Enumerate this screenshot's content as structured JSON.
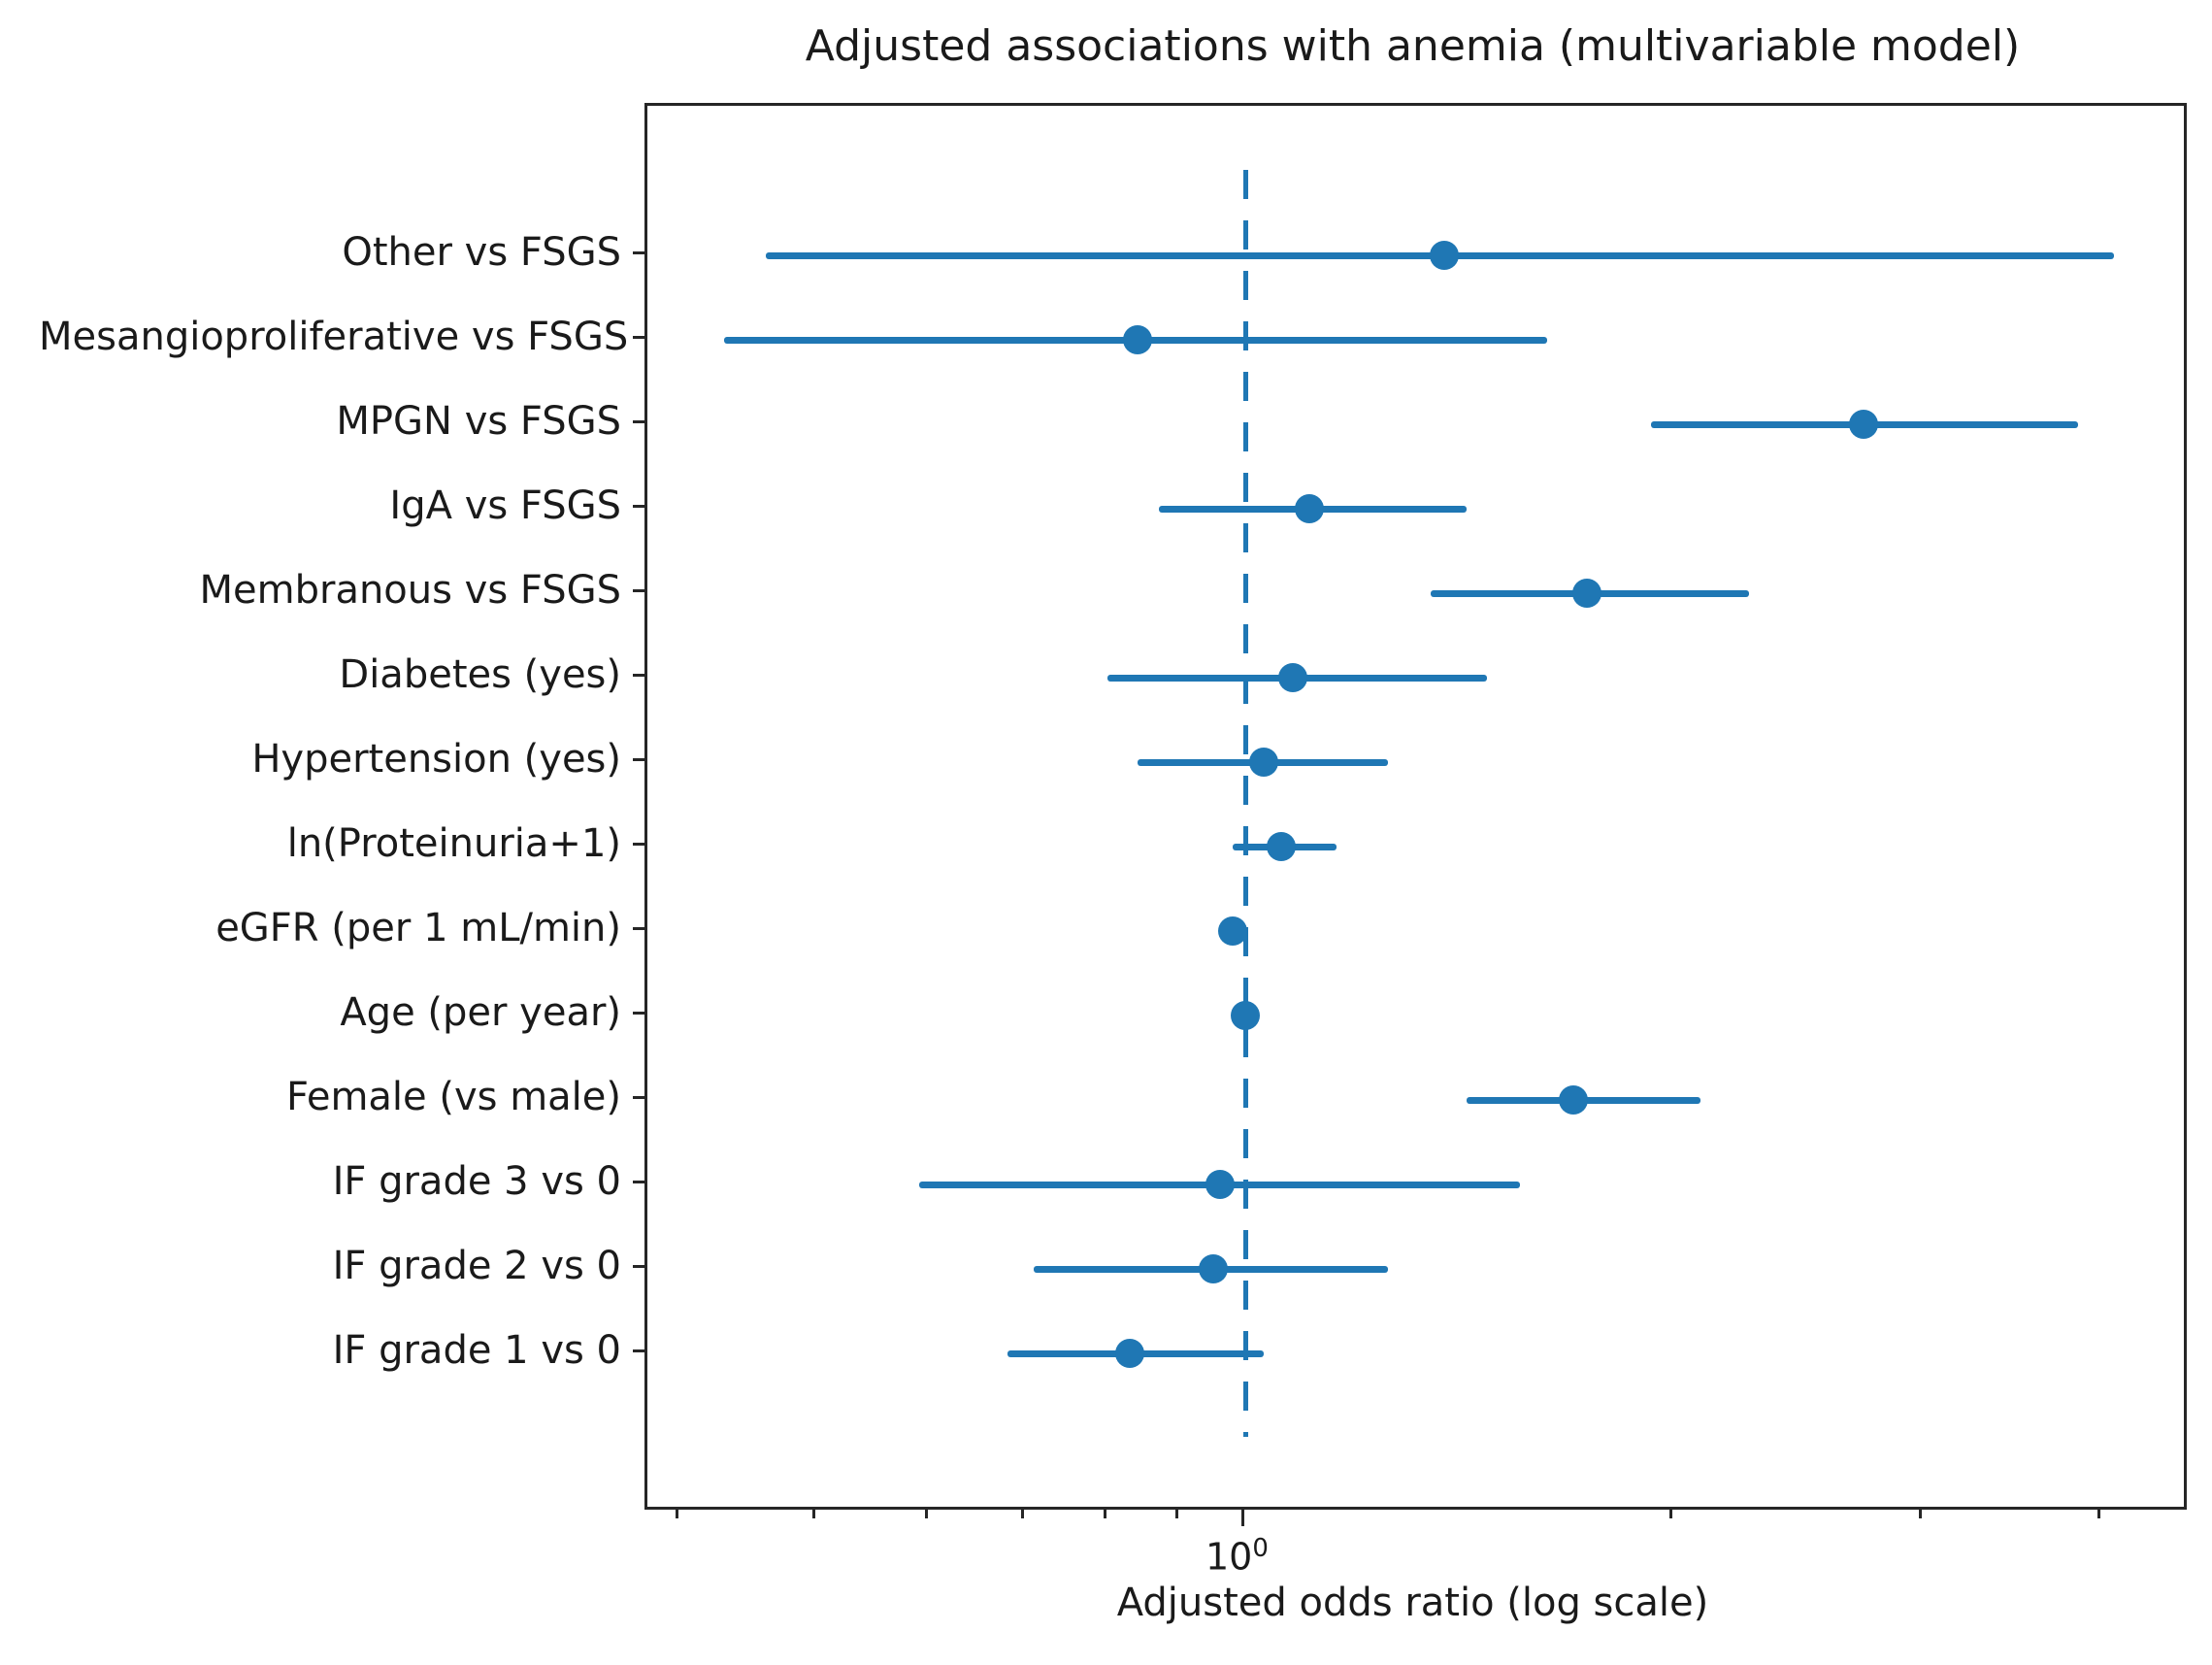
{
  "title": "Adjusted associations with anemia (multivariable model)",
  "chart_data": {
    "type": "scatter",
    "subtype": "forest-plot-with-error-bars",
    "title": "Adjusted associations with anemia (multivariable model)",
    "xlabel": "Adjusted odds ratio (log scale)",
    "ylabel": "",
    "x_scale": "log10",
    "xlim": [
      0.38,
      4.6
    ],
    "grid": false,
    "legend": "none",
    "reference_line_x": 1.0,
    "x_major_ticks": [
      {
        "value": 1.0,
        "base": "10",
        "exponent": "0"
      }
    ],
    "x_minor_ticks": [
      0.4,
      0.5,
      0.6,
      0.7,
      0.8,
      0.9,
      2.0,
      3.0,
      4.0
    ],
    "rows": [
      {
        "label": "Other vs FSGS",
        "or": 1.38,
        "ci_low": 0.46,
        "ci_high": 4.08
      },
      {
        "label": "Mesangioproliferative vs FSGS",
        "or": 0.84,
        "ci_low": 0.43,
        "ci_high": 1.63
      },
      {
        "label": "MPGN vs FSGS",
        "or": 2.72,
        "ci_low": 1.93,
        "ci_high": 3.85
      },
      {
        "label": "IgA vs FSGS",
        "or": 1.11,
        "ci_low": 0.87,
        "ci_high": 1.43
      },
      {
        "label": "Membranous vs FSGS",
        "or": 1.74,
        "ci_low": 1.35,
        "ci_high": 2.26
      },
      {
        "label": "Diabetes (yes)",
        "or": 1.08,
        "ci_low": 0.8,
        "ci_high": 1.48
      },
      {
        "label": "Hypertension (yes)",
        "or": 1.03,
        "ci_low": 0.84,
        "ci_high": 1.26
      },
      {
        "label": "ln(Proteinuria+1)",
        "or": 1.06,
        "ci_low": 0.98,
        "ci_high": 1.16
      },
      {
        "label": "eGFR (per 1 mL/min)",
        "or": 0.98,
        "ci_low": 0.96,
        "ci_high": 1.0
      },
      {
        "label": "Age (per year)",
        "or": 1.0,
        "ci_low": 0.98,
        "ci_high": 1.02
      },
      {
        "label": "Female (vs male)",
        "or": 1.7,
        "ci_low": 1.43,
        "ci_high": 2.09
      },
      {
        "label": "IF grade 3 vs 0",
        "or": 0.96,
        "ci_low": 0.59,
        "ci_high": 1.56
      },
      {
        "label": "IF grade 2 vs 0",
        "or": 0.95,
        "ci_low": 0.71,
        "ci_high": 1.26
      },
      {
        "label": "IF grade 1 vs 0",
        "or": 0.83,
        "ci_low": 0.68,
        "ci_high": 1.03
      }
    ],
    "colors": {
      "marker": "#1f77b4",
      "ci_line": "#1f77b4",
      "reference_line": "#1f77b4",
      "axis": "#262626",
      "text": "#1a1a1a",
      "background": "#ffffff"
    }
  }
}
